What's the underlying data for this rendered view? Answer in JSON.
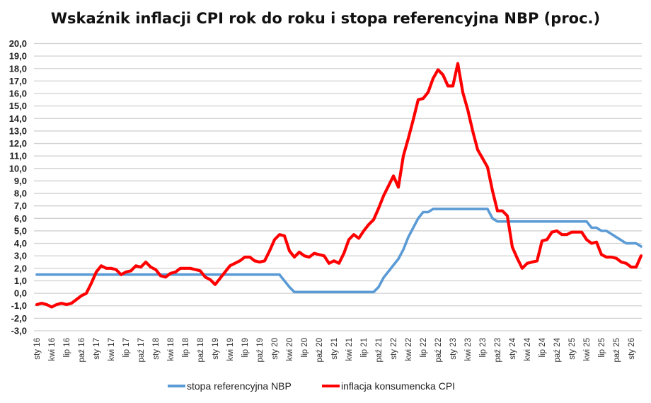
{
  "chart_data": {
    "type": "line",
    "title": "Wskaźnik inflacji CPI rok do roku i stopa referencyjna NBP (proc.)",
    "xlabel": "",
    "ylabel": "",
    "ylim": [
      -3,
      20
    ],
    "y_ticks": [
      "-3,0",
      "-2,0",
      "-1,0",
      "0,0",
      "1,0",
      "2,0",
      "3,0",
      "4,0",
      "5,0",
      "6,0",
      "7,0",
      "8,0",
      "9,0",
      "10,0",
      "11,0",
      "12,0",
      "13,0",
      "14,0",
      "15,0",
      "16,0",
      "17,0",
      "18,0",
      "19,0",
      "20,0"
    ],
    "x_tick_labels": [
      "sty 16",
      "kwi 16",
      "lip 16",
      "paź 16",
      "sty 17",
      "kwi 17",
      "lip 17",
      "paź 17",
      "sty 18",
      "kwi 18",
      "lip 18",
      "paź 18",
      "sty 19",
      "kwi 19",
      "lip 19",
      "paź 19",
      "sty 20",
      "kwi 20",
      "lip 20",
      "paź 20",
      "sty 21",
      "kwi 21",
      "lip 21",
      "paź 21",
      "sty 22",
      "kwi 22",
      "lip 22",
      "paź 22",
      "sty 23",
      "kwi 23",
      "lip 23",
      "paź 23",
      "sty 24",
      "kwi 24",
      "lip 24",
      "paź 24",
      "sty 25",
      "kwi 25",
      "lip 25",
      "paź 25",
      "sty 26"
    ],
    "x_start": "2016-01",
    "x_frequency": "monthly",
    "grid": true,
    "legend_position": "bottom",
    "series": [
      {
        "name": "stopa referencyjna NBP",
        "color": "#5b9bd5",
        "values": [
          1.5,
          1.5,
          1.5,
          1.5,
          1.5,
          1.5,
          1.5,
          1.5,
          1.5,
          1.5,
          1.5,
          1.5,
          1.5,
          1.5,
          1.5,
          1.5,
          1.5,
          1.5,
          1.5,
          1.5,
          1.5,
          1.5,
          1.5,
          1.5,
          1.5,
          1.5,
          1.5,
          1.5,
          1.5,
          1.5,
          1.5,
          1.5,
          1.5,
          1.5,
          1.5,
          1.5,
          1.5,
          1.5,
          1.5,
          1.5,
          1.5,
          1.5,
          1.5,
          1.5,
          1.5,
          1.5,
          1.5,
          1.5,
          1.5,
          1.5,
          1.0,
          0.5,
          0.1,
          0.1,
          0.1,
          0.1,
          0.1,
          0.1,
          0.1,
          0.1,
          0.1,
          0.1,
          0.1,
          0.1,
          0.1,
          0.1,
          0.1,
          0.1,
          0.1,
          0.5,
          1.25,
          1.75,
          2.25,
          2.75,
          3.5,
          4.5,
          5.25,
          6.0,
          6.5,
          6.5,
          6.75,
          6.75,
          6.75,
          6.75,
          6.75,
          6.75,
          6.75,
          6.75,
          6.75,
          6.75,
          6.75,
          6.75,
          6.0,
          5.75,
          5.75,
          5.75,
          5.75,
          5.75,
          5.75,
          5.75,
          5.75,
          5.75,
          5.75,
          5.75,
          5.75,
          5.75,
          5.75,
          5.75,
          5.75,
          5.75,
          5.75,
          5.75,
          5.25,
          5.25,
          5.0,
          5.0,
          4.75,
          4.5,
          4.25,
          4.0,
          4.0,
          4.0,
          3.75
        ]
      },
      {
        "name": "inflacja konsumencka CPI",
        "color": "#ff0000",
        "values": [
          -0.9,
          -0.8,
          -0.9,
          -1.1,
          -0.9,
          -0.8,
          -0.9,
          -0.8,
          -0.5,
          -0.2,
          0.0,
          0.8,
          1.7,
          2.2,
          2.0,
          2.0,
          1.9,
          1.5,
          1.7,
          1.8,
          2.2,
          2.1,
          2.5,
          2.1,
          1.9,
          1.4,
          1.3,
          1.6,
          1.7,
          2.0,
          2.0,
          2.0,
          1.9,
          1.8,
          1.3,
          1.1,
          0.7,
          1.2,
          1.7,
          2.2,
          2.4,
          2.6,
          2.9,
          2.9,
          2.6,
          2.5,
          2.6,
          3.4,
          4.3,
          4.7,
          4.6,
          3.4,
          2.9,
          3.3,
          3.0,
          2.9,
          3.2,
          3.1,
          3.0,
          2.4,
          2.6,
          2.4,
          3.2,
          4.3,
          4.7,
          4.4,
          5.0,
          5.5,
          5.9,
          6.8,
          7.8,
          8.6,
          9.4,
          8.5,
          11.0,
          12.4,
          13.9,
          15.5,
          15.6,
          16.1,
          17.2,
          17.9,
          17.5,
          16.6,
          16.6,
          18.4,
          16.1,
          14.7,
          13.0,
          11.5,
          10.8,
          10.1,
          8.2,
          6.6,
          6.6,
          6.2,
          3.7,
          2.8,
          2.0,
          2.4,
          2.5,
          2.6,
          4.2,
          4.3,
          4.9,
          5.0,
          4.7,
          4.7,
          4.9,
          4.9,
          4.9,
          4.3,
          4.0,
          4.1,
          3.1,
          2.9,
          2.9,
          2.8,
          2.5,
          2.4,
          2.1,
          2.1,
          3.0
        ]
      }
    ]
  }
}
